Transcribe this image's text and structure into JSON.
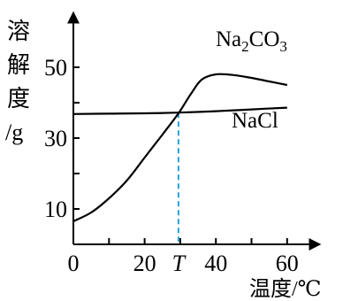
{
  "chart_data": {
    "type": "line",
    "ylabel_chars": [
      "溶",
      "解",
      "度",
      "/g"
    ],
    "xlabel": "温度/℃",
    "xlim": [
      0,
      65
    ],
    "ylim": [
      0,
      60
    ],
    "x_ticks": [
      0,
      10,
      20,
      30,
      40,
      50,
      60
    ],
    "x_tick_labels": [
      {
        "x": 0,
        "text": "0"
      },
      {
        "x": 20,
        "text": "20"
      },
      {
        "x": 40,
        "text": "40"
      },
      {
        "x": 60,
        "text": "60"
      }
    ],
    "y_ticks": [
      10,
      20,
      30,
      40,
      50
    ],
    "y_tick_labels": [
      {
        "y": 10,
        "text": "10"
      },
      {
        "y": 30,
        "text": "30"
      },
      {
        "y": 50,
        "text": "50"
      }
    ],
    "marker": {
      "x": 29.5,
      "label": "T"
    },
    "series": [
      {
        "name": "Na2CO3",
        "label_main": "Na",
        "label_sub1": "2",
        "label_mid": "CO",
        "label_sub2": "3",
        "points": [
          [
            0,
            6.5
          ],
          [
            5,
            9
          ],
          [
            10,
            13
          ],
          [
            15,
            18
          ],
          [
            20,
            24.5
          ],
          [
            25,
            31
          ],
          [
            29.5,
            37
          ],
          [
            33,
            42.5
          ],
          [
            36,
            46.5
          ],
          [
            40,
            48
          ],
          [
            45,
            47.8
          ],
          [
            50,
            47
          ],
          [
            55,
            46
          ],
          [
            60,
            45
          ]
        ]
      },
      {
        "name": "NaCl",
        "label": "NaCl",
        "points": [
          [
            0,
            36.8
          ],
          [
            10,
            36.9
          ],
          [
            20,
            37
          ],
          [
            29.5,
            37.2
          ],
          [
            40,
            37.6
          ],
          [
            50,
            38.1
          ],
          [
            60,
            38.6
          ]
        ]
      }
    ]
  }
}
